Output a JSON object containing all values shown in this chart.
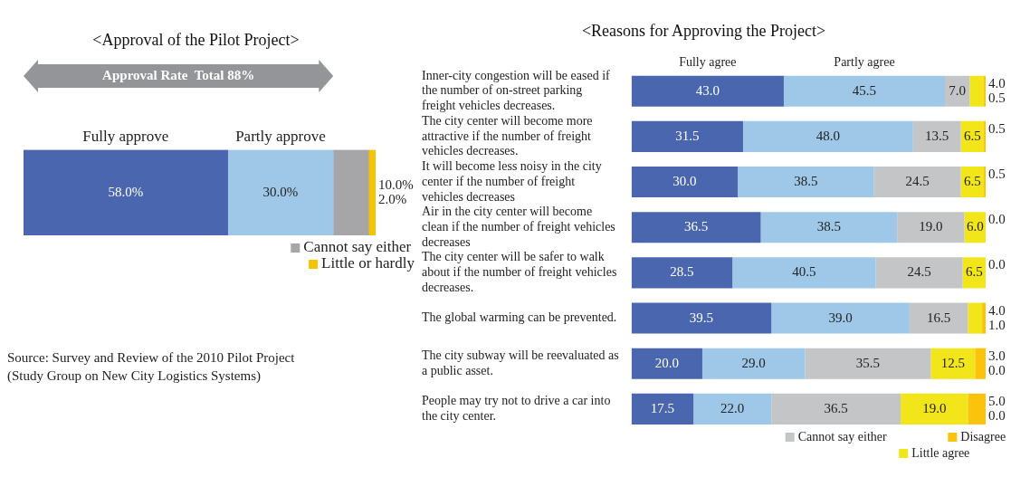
{
  "chart_data": [
    {
      "type": "bar",
      "orientation": "horizontal",
      "stacked": true,
      "title": "<Approval of the Pilot Project>",
      "categories": [
        null
      ],
      "legend": "bottom right",
      "tick_labels": false,
      "series": [
        {
          "name": "Fully approve",
          "color": "#4a66ae",
          "values": [
            58.0
          ],
          "value_labels": [
            "58.0%"
          ]
        },
        {
          "name": "Partly approve",
          "color": "#9fc8e8",
          "values": [
            30.0
          ],
          "value_labels": [
            "30.0%"
          ]
        },
        {
          "name": "Cannot say either",
          "color": "#a6a6a8",
          "values": [
            10.0
          ],
          "value_labels": [
            "10.0%"
          ]
        },
        {
          "name": "Little or hardly",
          "color": "#f5c400",
          "values": [
            2.0
          ],
          "value_labels": [
            "2.0%"
          ]
        }
      ],
      "annotations": [
        "Approval Rate  Total 88%",
        "Source: Survey and Review of the 2010 Pilot Project (Study Group on New City Logistics Systems)"
      ]
    },
    {
      "type": "bar",
      "orientation": "horizontal",
      "stacked": true,
      "title": "<Reasons for Approving the Project>",
      "legend": "bottom right",
      "tick_labels": "y",
      "categories": [
        "Inner-city congestion will be eased if the number of on-street parking freight vehicles decreases.",
        "The city center will become more attractive if the number of freight vehicles decreases.",
        "It will become less noisy in the city center if the number of freight vehicles decreases",
        "Air in the city center will become clean if the number of freight vehicles decreases",
        "The city center will be safer to walk about if the number of freight vehicles decreases.",
        "The global warming can be prevented.",
        "The city subway will be reevaluated as a public asset.",
        "People may try not to drive a car into the city center."
      ],
      "series": [
        {
          "name": "Fully agree",
          "color": "#4a66ae",
          "values": [
            43.0,
            31.5,
            30.0,
            36.5,
            28.5,
            39.5,
            20.0,
            17.5
          ],
          "value_labels": [
            "43.0",
            "31.5",
            "30.0",
            "36.5",
            "28.5",
            "39.5",
            "20.0",
            "17.5"
          ]
        },
        {
          "name": "Partly agree",
          "color": "#9fc8e8",
          "values": [
            45.5,
            48.0,
            38.5,
            38.5,
            40.5,
            39.0,
            29.0,
            22.0
          ],
          "value_labels": [
            "45.5",
            "48.0",
            "38.5",
            "38.5",
            "40.5",
            "39.0",
            "29.0",
            "22.0"
          ]
        },
        {
          "name": "Cannot say either",
          "color": "#c4c5c7",
          "values": [
            7.0,
            13.5,
            24.5,
            19.0,
            24.5,
            16.5,
            35.5,
            36.5
          ],
          "value_labels": [
            "7.0",
            "13.5",
            "24.5",
            "19.0",
            "24.5",
            "16.5",
            "35.5",
            "36.5"
          ]
        },
        {
          "name": "Little agree",
          "color": "#f2e51a",
          "values": [
            4.0,
            6.5,
            6.5,
            6.0,
            6.5,
            4.0,
            12.5,
            19.0
          ],
          "value_labels": [
            "4.0",
            "6.5",
            "6.5",
            "6.0",
            "6.5",
            "4.0",
            "12.5",
            "19.0"
          ]
        },
        {
          "name": "Disagree",
          "color": "#fbc30c",
          "values": [
            0.5,
            0.5,
            0.5,
            0.0,
            0.0,
            1.0,
            3.0,
            5.0
          ],
          "value_labels": [
            "0.5",
            "0.5",
            "0.5",
            "0.0",
            "0.0",
            "1.0",
            "3.0",
            "5.0"
          ]
        },
        {
          "color": "#f5a800",
          "values": [
            null,
            null,
            null,
            null,
            null,
            null,
            0.0,
            0.0
          ],
          "value_labels": [
            null,
            null,
            null,
            null,
            null,
            null,
            "0.0",
            "0.0"
          ]
        }
      ]
    }
  ]
}
